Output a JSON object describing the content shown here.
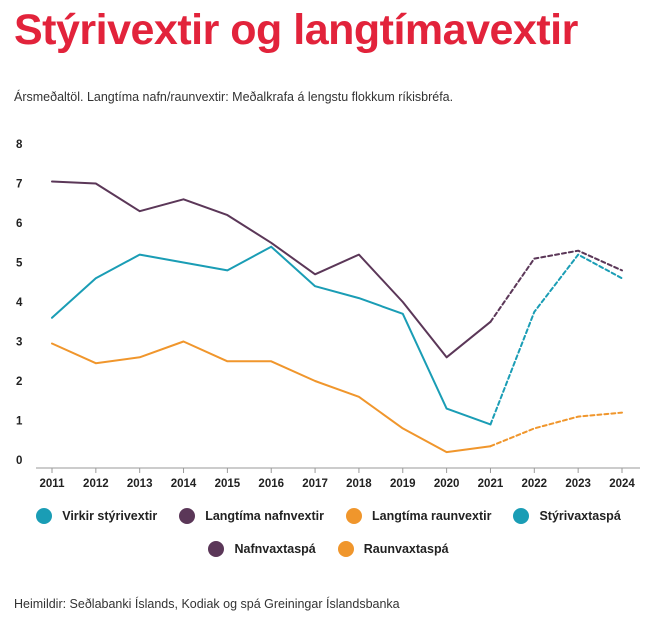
{
  "title": "Stýrivextir og langtímavextir",
  "subtitle": "Ársmeðaltöl.  Langtíma nafn/raunvextir: Meðalkrafa á lengstu flokkum ríkisbréfa.",
  "source": "Heimildir: Seðlabanki Íslands, Kodiak og spá Greiningar Íslandsbanka",
  "chart_data": {
    "type": "line",
    "title": "Stýrivextir og langtímavextir",
    "xlabel": "",
    "ylabel": "",
    "x": [
      2011,
      2012,
      2013,
      2014,
      2015,
      2016,
      2017,
      2018,
      2019,
      2020,
      2021,
      2022,
      2023,
      2024
    ],
    "ylim": [
      0,
      8
    ],
    "yticks": [
      0,
      1,
      2,
      3,
      4,
      5,
      6,
      7,
      8
    ],
    "grid": false,
    "legend_position": "bottom",
    "series": [
      {
        "name": "Virkir stýrivextir",
        "color": "#1a9db5",
        "style": "solid",
        "x": [
          2011,
          2012,
          2013,
          2014,
          2015,
          2016,
          2017,
          2018,
          2019,
          2020,
          2021
        ],
        "values": [
          3.6,
          4.6,
          5.2,
          5.0,
          4.8,
          5.4,
          4.4,
          4.1,
          3.7,
          1.3,
          0.9
        ]
      },
      {
        "name": "Langtíma nafnvextir",
        "color": "#5b3758",
        "style": "solid",
        "x": [
          2011,
          2012,
          2013,
          2014,
          2015,
          2016,
          2017,
          2018,
          2019,
          2020,
          2021
        ],
        "values": [
          7.05,
          7.0,
          6.3,
          6.6,
          6.2,
          5.5,
          4.7,
          5.2,
          4.0,
          2.6,
          3.5
        ]
      },
      {
        "name": "Langtíma raunvextir",
        "color": "#f0962c",
        "style": "solid",
        "x": [
          2011,
          2012,
          2013,
          2014,
          2015,
          2016,
          2017,
          2018,
          2019,
          2020,
          2021
        ],
        "values": [
          2.95,
          2.45,
          2.6,
          3.0,
          2.5,
          2.5,
          2.0,
          1.6,
          0.8,
          0.2,
          0.35
        ]
      },
      {
        "name": "Stýrivaxtaspá",
        "color": "#1a9db5",
        "style": "dashed",
        "x": [
          2021,
          2022,
          2023,
          2024
        ],
        "values": [
          0.9,
          3.75,
          5.2,
          4.6
        ]
      },
      {
        "name": "Nafnvaxtaspá",
        "color": "#5b3758",
        "style": "dashed",
        "x": [
          2021,
          2022,
          2023,
          2024
        ],
        "values": [
          3.5,
          5.1,
          5.3,
          4.8
        ]
      },
      {
        "name": "Raunvaxtaspá",
        "color": "#f0962c",
        "style": "dashed",
        "x": [
          2021,
          2022,
          2023,
          2024
        ],
        "values": [
          0.35,
          0.8,
          1.1,
          1.2
        ]
      }
    ]
  },
  "legend": {
    "row1": [
      {
        "label": "Virkir stýrivextir",
        "color": "#1a9db5"
      },
      {
        "label": "Langtíma nafnvextir",
        "color": "#5b3758"
      },
      {
        "label": "Langtíma raunvextir",
        "color": "#f0962c"
      },
      {
        "label": "Stýrivaxtaspá",
        "color": "#1a9db5"
      }
    ],
    "row2": [
      {
        "label": "Nafnvaxtaspá",
        "color": "#5b3758"
      },
      {
        "label": "Raunvaxtaspá",
        "color": "#f0962c"
      }
    ]
  }
}
